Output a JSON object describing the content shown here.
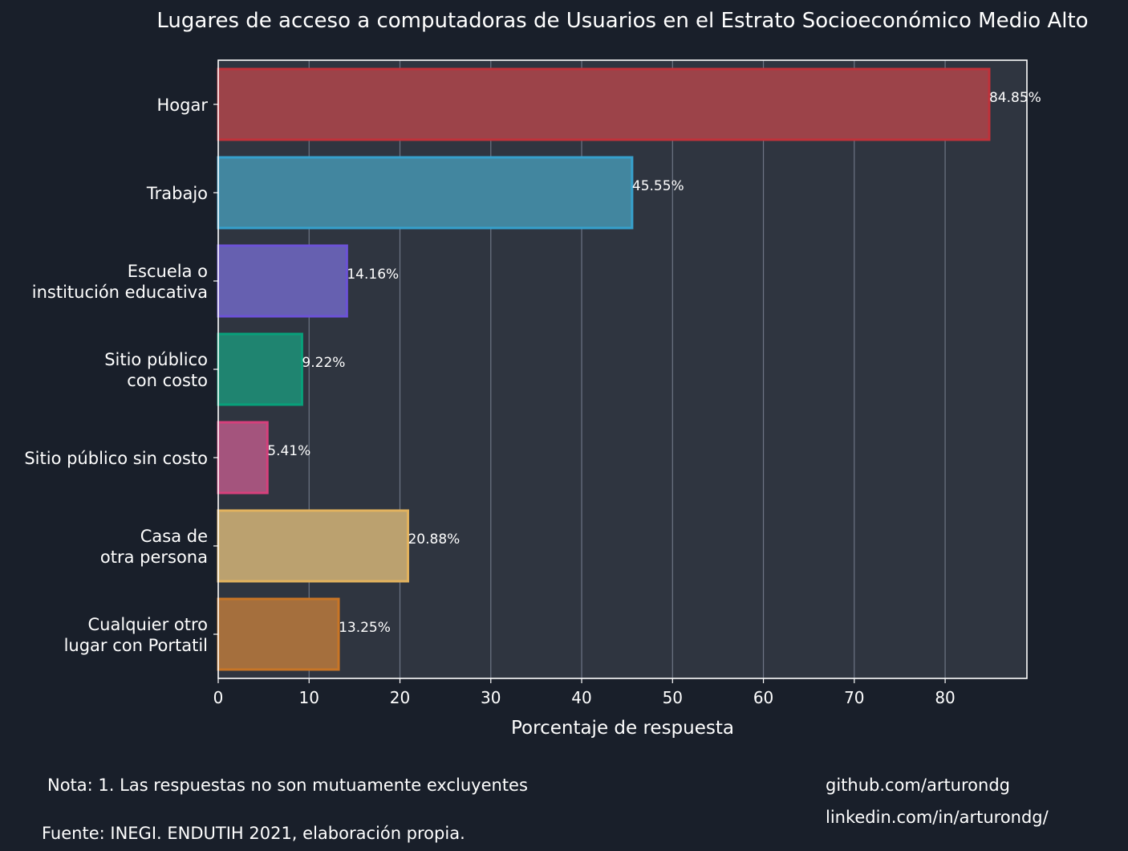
{
  "chart_data": {
    "type": "bar",
    "orientation": "horizontal",
    "title": "Lugares de acceso a computadoras de Usuarios en el Estrato Socioeconómico Medio Alto",
    "xlabel": "Porcentaje de respuesta",
    "ylabel": "",
    "xlim": [
      0,
      89
    ],
    "xticks": [
      0,
      10,
      20,
      30,
      40,
      50,
      60,
      70,
      80
    ],
    "grid": "vertical",
    "categories": [
      [
        "Hogar"
      ],
      [
        "Trabajo"
      ],
      [
        "Escuela o",
        "institución educativa"
      ],
      [
        "Sitio público",
        "con costo"
      ],
      [
        "Sitio público sin costo"
      ],
      [
        "Casa de",
        "otra persona"
      ],
      [
        "Cualquier otro",
        "lugar con Portatil"
      ]
    ],
    "values": [
      84.85,
      45.55,
      14.16,
      9.22,
      5.41,
      20.88,
      13.25
    ],
    "value_labels": [
      "84.85%",
      "45.55%",
      "14.16%",
      "9.22%",
      "5.41%",
      "20.88%",
      "13.25%"
    ],
    "colors": [
      {
        "fill": "#9c4349",
        "stroke": "#c0323a"
      },
      {
        "fill": "#42869f",
        "stroke": "#36a0cc"
      },
      {
        "fill": "#6660b0",
        "stroke": "#6c52d6"
      },
      {
        "fill": "#1f8470",
        "stroke": "#08a07a"
      },
      {
        "fill": "#a4547d",
        "stroke": "#d6407c"
      },
      {
        "fill": "#bba16f",
        "stroke": "#e2b25e"
      },
      {
        "fill": "#a56f3d",
        "stroke": "#c87526"
      }
    ]
  },
  "footer": {
    "note": "Nota: 1. Las respuestas no son mutuamente excluyentes",
    "source": "Fuente: INEGI. ENDUTIH 2021, elaboración propia.",
    "github": "github.com/arturondg",
    "linkedin": "linkedin.com/in/arturondg/"
  },
  "theme": {
    "background": "#191f2a",
    "plot_background": "#2f3540",
    "grid_color": "#6e7585",
    "text_color": "#ffffff"
  }
}
